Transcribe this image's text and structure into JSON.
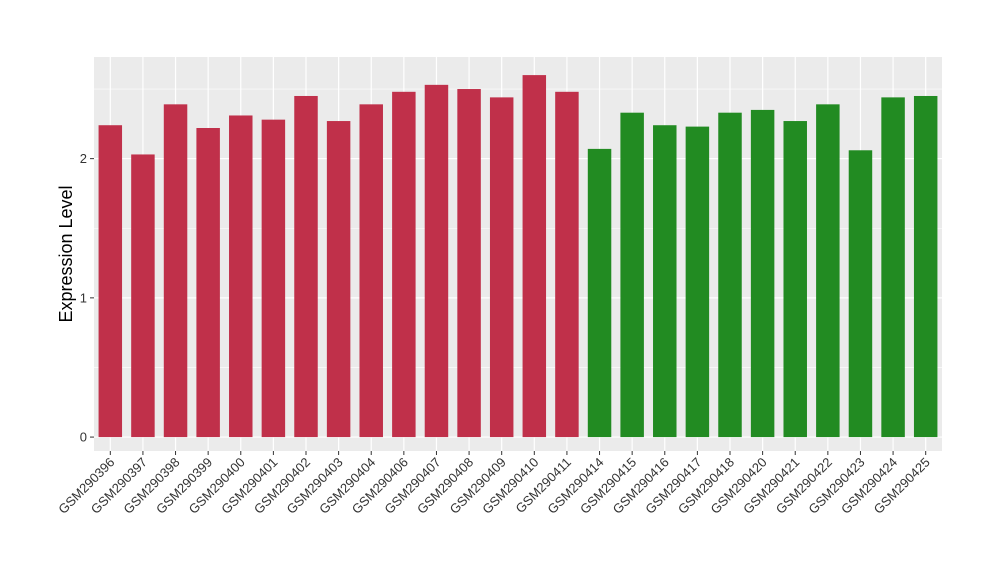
{
  "chart_data": {
    "type": "bar",
    "ylabel": "Expression Level",
    "xlabel": "",
    "ylim": [
      -0.1,
      2.73
    ],
    "yticks": [
      0,
      1,
      2
    ],
    "grid": true,
    "legend": "none",
    "colors": {
      "group1": "#c0304a",
      "group2": "#228b22",
      "panel": "#ebebeb",
      "grid": "#ffffff"
    },
    "categories": [
      "GSM290396",
      "GSM290397",
      "GSM290398",
      "GSM290399",
      "GSM290400",
      "GSM290401",
      "GSM290402",
      "GSM290403",
      "GSM290404",
      "GSM290406",
      "GSM290407",
      "GSM290408",
      "GSM290409",
      "GSM290410",
      "GSM290411",
      "GSM290414",
      "GSM290415",
      "GSM290416",
      "GSM290417",
      "GSM290418",
      "GSM290420",
      "GSM290421",
      "GSM290422",
      "GSM290423",
      "GSM290424",
      "GSM290425"
    ],
    "values": [
      2.24,
      2.03,
      2.39,
      2.22,
      2.31,
      2.28,
      2.45,
      2.27,
      2.39,
      2.48,
      2.53,
      2.5,
      2.44,
      2.6,
      2.48,
      2.07,
      2.33,
      2.24,
      2.23,
      2.33,
      2.35,
      2.27,
      2.39,
      2.06,
      2.44,
      2.45
    ],
    "groups": [
      "group1",
      "group1",
      "group1",
      "group1",
      "group1",
      "group1",
      "group1",
      "group1",
      "group1",
      "group1",
      "group1",
      "group1",
      "group1",
      "group1",
      "group1",
      "group2",
      "group2",
      "group2",
      "group2",
      "group2",
      "group2",
      "group2",
      "group2",
      "group2",
      "group2",
      "group2"
    ]
  }
}
